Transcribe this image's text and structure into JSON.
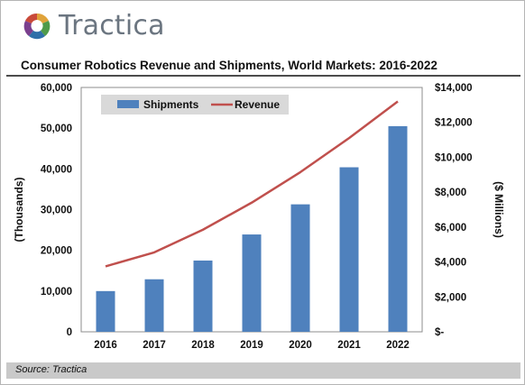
{
  "brand": {
    "name": "Tractica",
    "logo_icon": "tractica-logo-icon"
  },
  "title": "Consumer Robotics Revenue and Shipments, World Markets: 2016-2022",
  "source": "Source: Tractica",
  "chart_data": {
    "type": "bar",
    "title": "Consumer Robotics Revenue and Shipments, World Markets: 2016-2022",
    "categories": [
      "2016",
      "2017",
      "2018",
      "2019",
      "2020",
      "2021",
      "2022"
    ],
    "series": [
      {
        "name": "Shipments",
        "type": "bar",
        "axis": "left",
        "color": "#4f81bd",
        "values": [
          10000,
          12900,
          17500,
          23900,
          31300,
          40400,
          50500
        ]
      },
      {
        "name": "Revenue",
        "type": "line",
        "axis": "right",
        "color": "#c0504d",
        "values": [
          3750,
          4550,
          5850,
          7400,
          9150,
          11100,
          13200
        ]
      }
    ],
    "ylabel": "(Thousands)",
    "y2label": "($ Millions)",
    "ylim": [
      0,
      60000
    ],
    "y2lim": [
      0,
      14000
    ],
    "yticks": [
      "0",
      "10,000",
      "20,000",
      "30,000",
      "40,000",
      "50,000",
      "60,000"
    ],
    "y2ticks": [
      "$-",
      "$2,000",
      "$4,000",
      "$6,000",
      "$8,000",
      "$10,000",
      "$12,000",
      "$14,000"
    ],
    "legend": {
      "position": "top-left",
      "entries": [
        "Shipments",
        "Revenue"
      ]
    },
    "grid": false
  }
}
